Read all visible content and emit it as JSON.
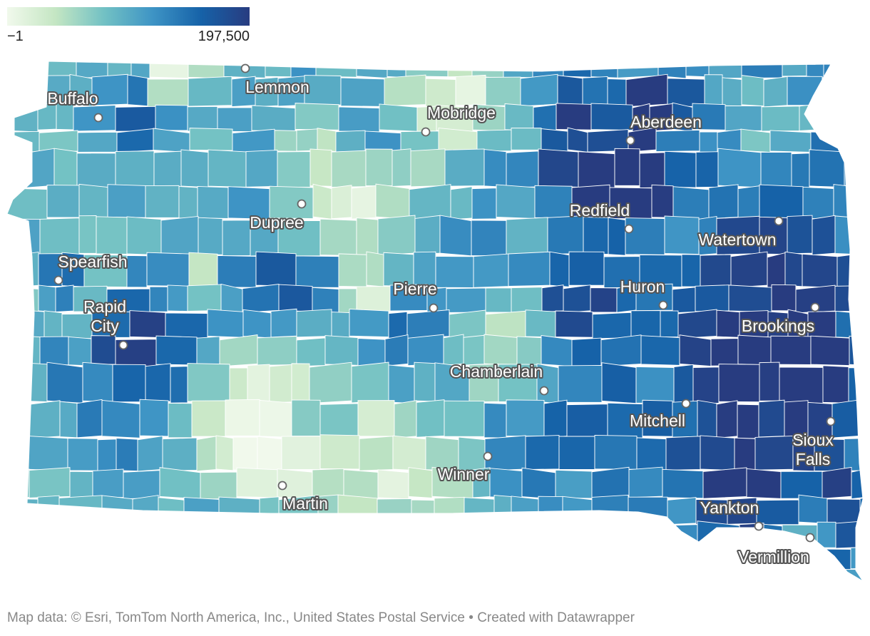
{
  "legend": {
    "min_label": "−1",
    "max_label": "197,500",
    "colors": [
      "#f1f9ec",
      "#c4e6c3",
      "#72c1c4",
      "#3e94c5",
      "#1662a8",
      "#283c80"
    ]
  },
  "map": {
    "region": "South Dakota",
    "cities": [
      {
        "name": "Buffalo",
        "lines": [
          "Buffalo"
        ]
      },
      {
        "name": "Lemmon",
        "lines": [
          "Lemmon"
        ]
      },
      {
        "name": "Mobridge",
        "lines": [
          "Mobridge"
        ]
      },
      {
        "name": "Aberdeen",
        "lines": [
          "Aberdeen"
        ]
      },
      {
        "name": "Redfield",
        "lines": [
          "Redfield"
        ]
      },
      {
        "name": "Dupree",
        "lines": [
          "Dupree"
        ]
      },
      {
        "name": "Watertown",
        "lines": [
          "Watertown"
        ]
      },
      {
        "name": "Spearfish",
        "lines": [
          "Spearfish"
        ]
      },
      {
        "name": "Pierre",
        "lines": [
          "Pierre"
        ]
      },
      {
        "name": "Huron",
        "lines": [
          "Huron"
        ]
      },
      {
        "name": "Rapid City",
        "lines": [
          "Rapid",
          "City"
        ]
      },
      {
        "name": "Brookings",
        "lines": [
          "Brookings"
        ]
      },
      {
        "name": "Chamberlain",
        "lines": [
          "Chamberlain"
        ]
      },
      {
        "name": "Mitchell",
        "lines": [
          "Mitchell"
        ]
      },
      {
        "name": "Sioux Falls",
        "lines": [
          "Sioux",
          "Falls"
        ]
      },
      {
        "name": "Winner",
        "lines": [
          "Winner"
        ]
      },
      {
        "name": "Martin",
        "lines": [
          "Martin"
        ]
      },
      {
        "name": "Yankton",
        "lines": [
          "Yankton"
        ]
      },
      {
        "name": "Vermillion",
        "lines": [
          "Vermillion"
        ]
      }
    ]
  },
  "footer": {
    "map_data": "Map data: © Esri, TomTom North America, Inc., United States Postal Service",
    "separator": " • ",
    "credit": "Created with Datawrapper"
  }
}
